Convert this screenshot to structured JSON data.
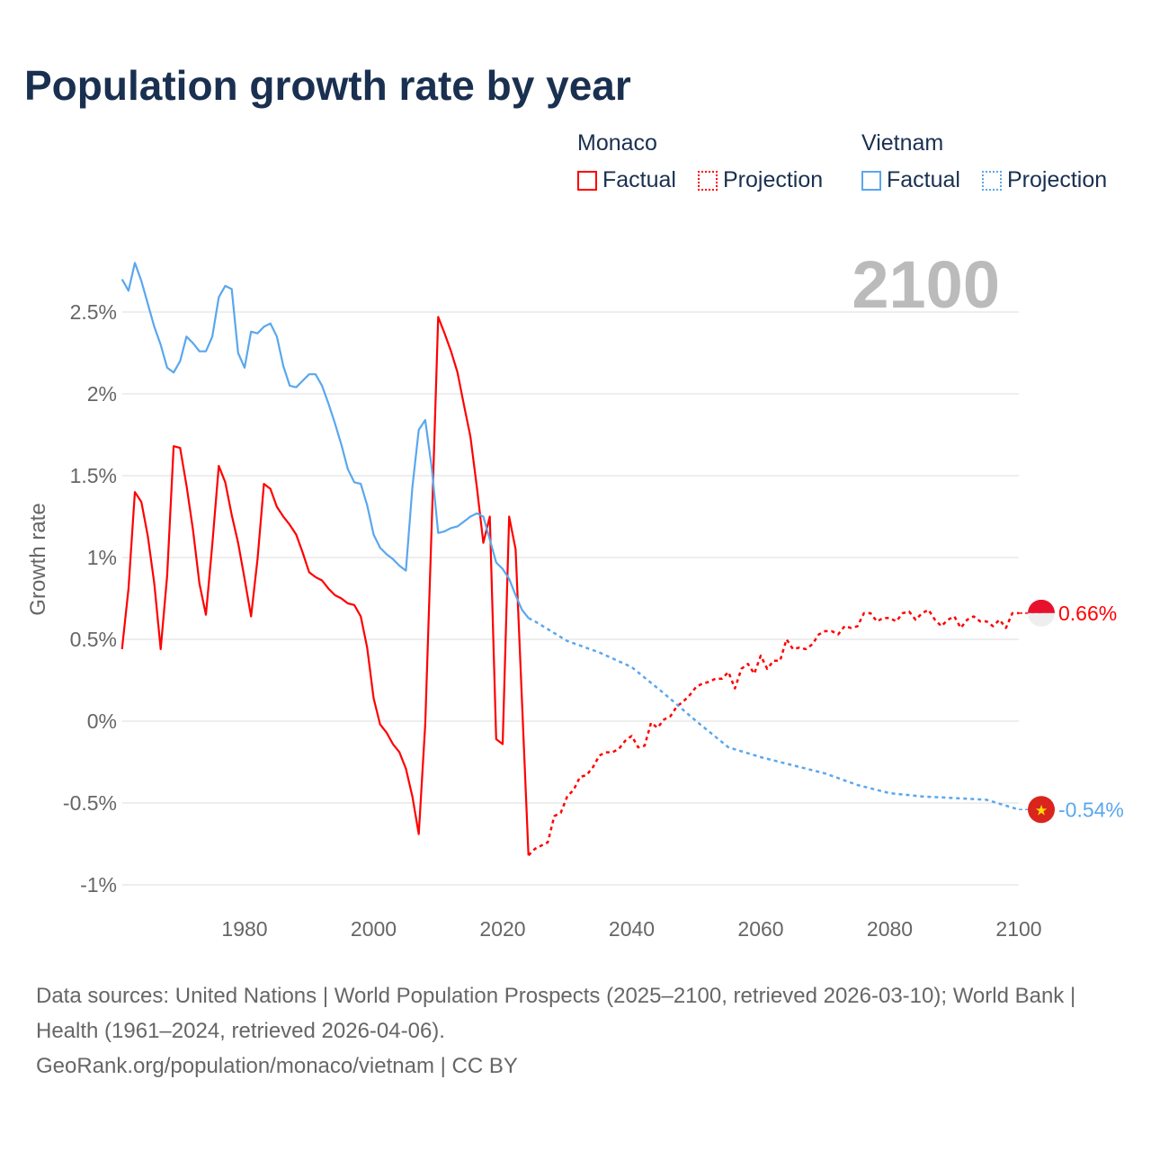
{
  "title": "Population growth rate by year",
  "legend": {
    "groups": [
      {
        "name": "Monaco",
        "factual": "Factual",
        "projection": "Projection",
        "color": "#ff0000"
      },
      {
        "name": "Vietnam",
        "factual": "Factual",
        "projection": "Projection",
        "color": "#5aa7ee"
      }
    ]
  },
  "year_watermark": "2100",
  "end_labels": {
    "monaco": "0.66%",
    "vietnam": "-0.54%"
  },
  "footer": {
    "sources": "Data sources: United Nations | World Population Prospects (2025–2100, retrieved 2026-03-10); World Bank | Health (1961–2024, retrieved 2026-04-06).",
    "credit": "GeoRank.org/population/monaco/vietnam | CC BY"
  },
  "chart_data": {
    "type": "line",
    "title": "Population growth rate by year",
    "ylabel": "Growth rate",
    "xlabel": "",
    "xlim": [
      1961,
      2100
    ],
    "ylim": [
      -1,
      2.8
    ],
    "xticks": [
      1980,
      2000,
      2020,
      2040,
      2060,
      2080,
      2100
    ],
    "xtick_labels": [
      "1980",
      "2000",
      "2020",
      "2040",
      "2060",
      "2080",
      "2100"
    ],
    "yticks": [
      -1,
      -0.5,
      0,
      0.5,
      1,
      1.5,
      2,
      2.5
    ],
    "ytick_labels": [
      "-1%",
      "-0.5%",
      "0%",
      "0.5%",
      "1%",
      "1.5%",
      "2%",
      "2.5%"
    ],
    "grid": true,
    "legend_position": "top-right",
    "series": [
      {
        "name": "Monaco Factual",
        "color": "#ff0000",
        "style": "solid",
        "start_year": 1961,
        "values": [
          0.44,
          0.81,
          1.4,
          1.34,
          1.13,
          0.84,
          0.44,
          0.89,
          1.68,
          1.67,
          1.44,
          1.17,
          0.84,
          0.65,
          1.08,
          1.56,
          1.46,
          1.26,
          1.09,
          0.87,
          0.64,
          0.99,
          1.45,
          1.42,
          1.31,
          1.25,
          1.2,
          1.14,
          1.03,
          0.91,
          0.88,
          0.86,
          0.81,
          0.77,
          0.75,
          0.72,
          0.71,
          0.64,
          0.45,
          0.14,
          -0.02,
          -0.07,
          -0.14,
          -0.19,
          -0.29,
          -0.46,
          -0.69,
          -0.02,
          1.2,
          2.47,
          2.37,
          2.26,
          2.13,
          1.93,
          1.74,
          1.43,
          1.09,
          1.25,
          -0.11,
          -0.14,
          1.25,
          1.05,
          0.12,
          -0.82
        ]
      },
      {
        "name": "Monaco Projection",
        "color": "#ff0000",
        "style": "dotted",
        "start_year": 2024,
        "values": [
          -0.82,
          -0.78,
          -0.76,
          -0.74,
          -0.58,
          -0.56,
          -0.46,
          -0.42,
          -0.34,
          -0.33,
          -0.28,
          -0.21,
          -0.19,
          -0.19,
          -0.17,
          -0.12,
          -0.09,
          -0.16,
          -0.15,
          -0.01,
          -0.04,
          0.01,
          0.03,
          0.09,
          0.12,
          0.16,
          0.21,
          0.23,
          0.24,
          0.26,
          0.26,
          0.3,
          0.2,
          0.32,
          0.35,
          0.29,
          0.4,
          0.32,
          0.37,
          0.37,
          0.5,
          0.44,
          0.45,
          0.44,
          0.47,
          0.53,
          0.55,
          0.55,
          0.53,
          0.58,
          0.57,
          0.58,
          0.66,
          0.66,
          0.61,
          0.63,
          0.63,
          0.61,
          0.66,
          0.67,
          0.62,
          0.66,
          0.68,
          0.62,
          0.58,
          0.62,
          0.64,
          0.57,
          0.62,
          0.64,
          0.61,
          0.61,
          0.58,
          0.62,
          0.57,
          0.66,
          0.66
        ]
      },
      {
        "name": "Vietnam Factual",
        "color": "#5aa7ee",
        "style": "solid",
        "start_year": 1961,
        "values": [
          2.7,
          2.63,
          2.8,
          2.69,
          2.55,
          2.41,
          2.3,
          2.16,
          2.13,
          2.2,
          2.35,
          2.31,
          2.26,
          2.26,
          2.35,
          2.59,
          2.66,
          2.64,
          2.25,
          2.16,
          2.38,
          2.37,
          2.41,
          2.43,
          2.35,
          2.17,
          2.05,
          2.04,
          2.08,
          2.12,
          2.12,
          2.05,
          1.94,
          1.82,
          1.69,
          1.54,
          1.46,
          1.45,
          1.32,
          1.14,
          1.06,
          1.02,
          0.99,
          0.95,
          0.92,
          1.43,
          1.78,
          1.84,
          1.55,
          1.15,
          1.16,
          1.18,
          1.19,
          1.22,
          1.25,
          1.27,
          1.25,
          1.11,
          0.97,
          0.93,
          0.87,
          0.77,
          0.68,
          0.63
        ]
      },
      {
        "name": "Vietnam Projection",
        "color": "#5aa7ee",
        "style": "dotted",
        "x": [
          2024,
          2025,
          2030,
          2035,
          2040,
          2045,
          2050,
          2055,
          2060,
          2065,
          2070,
          2075,
          2080,
          2085,
          2090,
          2095,
          2100
        ],
        "values": [
          0.63,
          0.61,
          0.49,
          0.42,
          0.33,
          0.17,
          0.0,
          -0.16,
          -0.22,
          -0.27,
          -0.32,
          -0.39,
          -0.44,
          -0.46,
          -0.47,
          -0.48,
          -0.54
        ]
      }
    ]
  }
}
